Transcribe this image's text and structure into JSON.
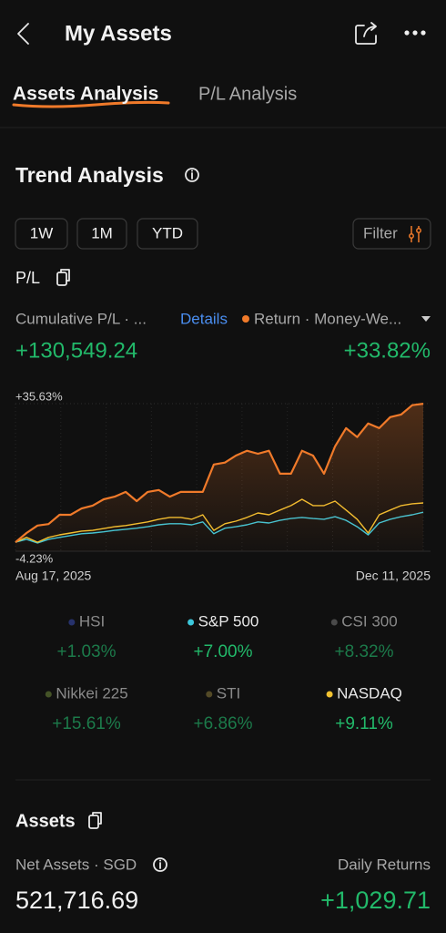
{
  "header": {
    "title": "My Assets"
  },
  "tabs": [
    {
      "label": "Assets Analysis",
      "active": true
    },
    {
      "label": "P/L Analysis",
      "active": false
    }
  ],
  "trend": {
    "title": "Trend Analysis",
    "ranges": [
      "1W",
      "1M",
      "YTD"
    ],
    "filter": "Filter",
    "pl_label": "P/L",
    "cumulative_label": "Cumulative P/L · ...",
    "details": "Details",
    "return_label": "Return · Money-We...",
    "cumulative_value": "+130,549.24",
    "return_value": "+33.82%"
  },
  "chart_data": {
    "type": "line",
    "categories": [
      "Aug 17, 2025",
      null,
      null,
      null,
      null,
      null,
      null,
      null,
      null,
      null,
      null,
      null,
      null,
      null,
      null,
      null,
      null,
      null,
      null,
      null,
      null,
      null,
      null,
      null,
      null,
      null,
      null,
      null,
      null,
      null,
      null,
      null,
      null,
      null,
      null,
      null,
      null,
      "Dec 11, 2025"
    ],
    "ylim": [
      -4.23,
      35.63
    ],
    "yticks": [
      {
        "value": 35.63,
        "label": "+35.63%"
      },
      {
        "value": -4.23,
        "label": "-4.23%"
      }
    ],
    "series": [
      {
        "name": "Return",
        "color": "#f07a2a",
        "area": true,
        "values": [
          -1.8,
          0.7,
          2.7,
          3.1,
          5.6,
          5.6,
          7.3,
          8.1,
          9.8,
          10.5,
          11.8,
          9.3,
          11.8,
          12.3,
          10.5,
          11.8,
          11.8,
          11.8,
          19.2,
          19.7,
          21.6,
          22.9,
          22.1,
          22.9,
          16.7,
          16.7,
          22.9,
          21.6,
          16.7,
          24.1,
          29.0,
          26.6,
          30.3,
          29.0,
          32.0,
          32.7,
          35.2,
          35.6
        ]
      },
      {
        "name": "NASDAQ",
        "color": "#f2c230",
        "area": false,
        "values": [
          -1.8,
          -0.5,
          -1.8,
          -0.5,
          0.2,
          0.7,
          1.2,
          1.4,
          1.9,
          2.4,
          2.7,
          3.2,
          3.7,
          4.4,
          4.9,
          4.9,
          4.4,
          5.6,
          1.4,
          3.2,
          3.9,
          4.9,
          6.1,
          5.6,
          6.9,
          8.1,
          9.8,
          8.1,
          8.1,
          9.3,
          6.9,
          4.4,
          0.7,
          5.6,
          6.9,
          8.1,
          8.6,
          8.8
        ]
      },
      {
        "name": "S&P 500",
        "color": "#3cc8dc",
        "area": false,
        "values": [
          -1.8,
          -1.0,
          -2.0,
          -1.0,
          -0.5,
          0.0,
          0.5,
          0.7,
          1.0,
          1.4,
          1.7,
          2.0,
          2.4,
          2.9,
          3.2,
          3.2,
          2.9,
          3.7,
          0.5,
          2.0,
          2.4,
          2.9,
          3.7,
          3.4,
          4.1,
          4.6,
          4.9,
          4.6,
          4.4,
          5.1,
          4.1,
          2.4,
          0.2,
          3.4,
          4.4,
          5.1,
          5.6,
          6.3
        ]
      }
    ]
  },
  "indices": [
    {
      "name": "HSI",
      "color": "#3a4fb8",
      "value": "+1.03%",
      "selected": false
    },
    {
      "name": "S&P 500",
      "color": "#3cc8dc",
      "value": "+7.00%",
      "selected": true
    },
    {
      "name": "CSI 300",
      "color": "#7a7a7a",
      "value": "+8.32%",
      "selected": false
    },
    {
      "name": "Nikkei 225",
      "color": "#6f8a3a",
      "value": "+15.61%",
      "selected": false
    },
    {
      "name": "STI",
      "color": "#8a7a3a",
      "value": "+6.86%",
      "selected": false
    },
    {
      "name": "NASDAQ",
      "color": "#f2c230",
      "value": "+9.11%",
      "selected": true
    }
  ],
  "assets": {
    "title": "Assets",
    "net_label": "Net Assets · SGD",
    "net_value": "521,716.69",
    "daily_label": "Daily Returns",
    "daily_value": "+1,029.71"
  }
}
